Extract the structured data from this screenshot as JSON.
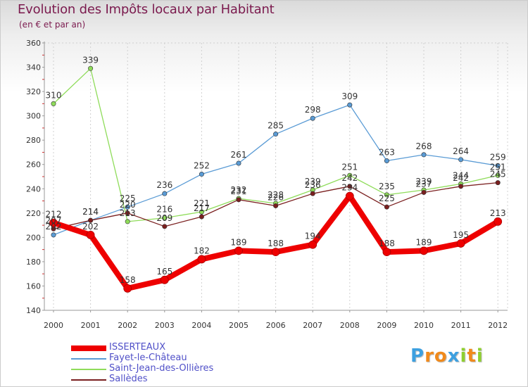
{
  "chart_data": {
    "type": "line",
    "title": "Evolution des Impôts locaux par Habitant",
    "subtitle": "(en € et par an)",
    "xlabel": "",
    "ylabel": "",
    "categories": [
      "2000",
      "2001",
      "2002",
      "2003",
      "2004",
      "2005",
      "2006",
      "2007",
      "2008",
      "2009",
      "2010",
      "2011",
      "2012"
    ],
    "ylim": [
      140,
      360
    ],
    "yticks": [
      140,
      160,
      180,
      200,
      220,
      240,
      260,
      280,
      300,
      320,
      340,
      360
    ],
    "grid": "vertical",
    "legend_position": "bottom-left",
    "series": [
      {
        "name": "Fayet-le-Château",
        "color": "#5a9bd5",
        "thick": false,
        "values": [
          202,
          214,
          225,
          236,
          252,
          261,
          285,
          298,
          309,
          263,
          268,
          264,
          259
        ],
        "labels": [
          "202",
          "214",
          "225",
          "236",
          "252",
          "261",
          "285",
          "298",
          "309",
          "263",
          "268",
          "264",
          "259"
        ]
      },
      {
        "name": "Saint-Jean-des-Ollières",
        "color": "#8fdc5a",
        "thick": false,
        "values": [
          310,
          339,
          213,
          216,
          221,
          232,
          228,
          239,
          251,
          235,
          239,
          244,
          251
        ],
        "labels": [
          "310",
          "339",
          "213",
          "216",
          "221",
          "232",
          "228",
          "239",
          "251",
          "235",
          "239",
          "244",
          "251"
        ]
      },
      {
        "name": "Sallèdes",
        "color": "#7a1f1f",
        "thick": false,
        "values": [
          207,
          214,
          220,
          209,
          217,
          231,
          226,
          236,
          242,
          225,
          237,
          242,
          245
        ],
        "labels": [
          "207",
          "214",
          "220",
          "209",
          "217",
          "231",
          "226",
          "236",
          "242",
          "225",
          "237",
          "242",
          "245"
        ]
      },
      {
        "name": "ISSERTEAUX",
        "color": "#ee0000",
        "thick": true,
        "values": [
          212,
          202,
          158,
          165,
          182,
          189,
          188,
          194,
          234,
          188,
          189,
          195,
          213
        ],
        "labels": [
          "212",
          "202",
          "158",
          "165",
          "182",
          "189",
          "188",
          "194",
          "234",
          "188",
          "189",
          "195",
          "213"
        ]
      }
    ],
    "legend_order": [
      "ISSERTEAUX",
      "Fayet-le-Château",
      "Saint-Jean-des-Ollières",
      "Sallèdes"
    ]
  },
  "branding": {
    "logo_letters": [
      "P",
      "r",
      "o",
      "x",
      "i",
      "t",
      "i"
    ],
    "logo_colors": [
      "#3da0e0",
      "#f08a1c",
      "#f08a1c",
      "#3da0e0",
      "#8fcf30",
      "#f08a1c",
      "#8fcf30"
    ]
  }
}
